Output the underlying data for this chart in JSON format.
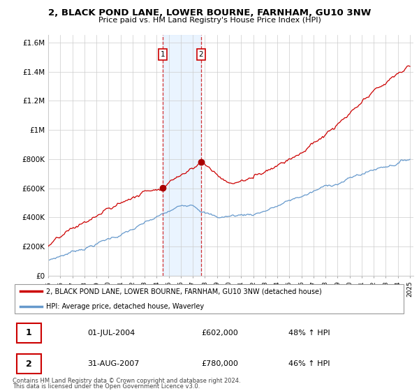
{
  "title": "2, BLACK POND LANE, LOWER BOURNE, FARNHAM, GU10 3NW",
  "subtitle": "Price paid vs. HM Land Registry's House Price Index (HPI)",
  "legend_line1": "2, BLACK POND LANE, LOWER BOURNE, FARNHAM, GU10 3NW (detached house)",
  "legend_line2": "HPI: Average price, detached house, Waverley",
  "table_rows": [
    {
      "num": "1",
      "date": "01-JUL-2004",
      "price": "£602,000",
      "hpi": "48% ↑ HPI"
    },
    {
      "num": "2",
      "date": "31-AUG-2007",
      "price": "£780,000",
      "hpi": "46% ↑ HPI"
    }
  ],
  "footnote1": "Contains HM Land Registry data © Crown copyright and database right 2024.",
  "footnote2": "This data is licensed under the Open Government Licence v3.0.",
  "sale1_year": 2004.5,
  "sale1_price": 602000,
  "sale2_year": 2007.67,
  "sale2_price": 780000,
  "ylim": [
    0,
    1650000
  ],
  "yticks": [
    0,
    200000,
    400000,
    600000,
    800000,
    1000000,
    1200000,
    1400000,
    1600000
  ],
  "ytick_labels": [
    "£0",
    "£200K",
    "£400K",
    "£600K",
    "£800K",
    "£1M",
    "£1.2M",
    "£1.4M",
    "£1.6M"
  ],
  "red_color": "#cc0000",
  "blue_color": "#6699cc",
  "shade_color": "#ddeeff",
  "grid_color": "#cccccc",
  "sale_dot_color": "#aa0000"
}
